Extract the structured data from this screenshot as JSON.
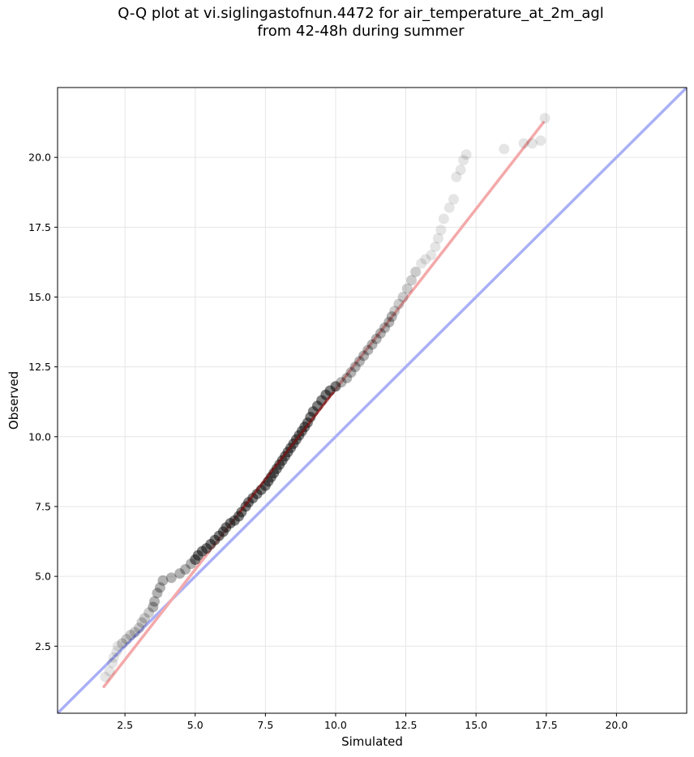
{
  "chart_data": {
    "type": "scatter",
    "title_line1": "Q-Q plot at vi.siglingastofnun.4472 for air_temperature_at_2m_agl",
    "title_line2": "from 42-48h during summer",
    "xlabel": "Simulated",
    "ylabel": "Observed",
    "xlim": [
      0.1,
      22.5
    ],
    "ylim": [
      0.1,
      22.5
    ],
    "xticks": [
      "2.5",
      "5.0",
      "7.5",
      "10.0",
      "12.5",
      "15.0",
      "17.5",
      "20.0"
    ],
    "yticks": [
      "2.5",
      "5.0",
      "7.5",
      "10.0",
      "12.5",
      "15.0",
      "17.5",
      "20.0"
    ],
    "grid": true,
    "colors": {
      "points": "#000000",
      "identity_line": "#aab0f5",
      "fit_line": "#f4a9aa",
      "fit_line_dense": "#8a1010"
    },
    "identity_line": {
      "x": [
        0.1,
        22.5
      ],
      "y": [
        0.1,
        22.5
      ]
    },
    "fit_line": {
      "x": [
        1.75,
        17.4
      ],
      "y": [
        1.05,
        21.25
      ]
    },
    "series": [
      {
        "points": [
          [
            1.8,
            1.4
          ],
          [
            1.95,
            1.6
          ],
          [
            2.05,
            1.9
          ],
          [
            2.1,
            2.1
          ],
          [
            2.2,
            2.3
          ],
          [
            2.25,
            2.5
          ],
          [
            2.4,
            2.6
          ],
          [
            2.55,
            2.75
          ],
          [
            2.7,
            2.9
          ],
          [
            2.85,
            3.0
          ],
          [
            3.0,
            3.15
          ],
          [
            3.1,
            3.35
          ],
          [
            3.2,
            3.5
          ],
          [
            3.35,
            3.7
          ],
          [
            3.5,
            3.9
          ],
          [
            3.55,
            4.1
          ],
          [
            3.65,
            4.4
          ],
          [
            3.75,
            4.6
          ],
          [
            3.85,
            4.85
          ],
          [
            4.15,
            4.95
          ],
          [
            4.45,
            5.1
          ],
          [
            4.65,
            5.25
          ],
          [
            4.85,
            5.45
          ],
          [
            5.0,
            5.6
          ],
          [
            5.1,
            5.75
          ],
          [
            5.25,
            5.9
          ],
          [
            5.4,
            6.0
          ],
          [
            5.55,
            6.15
          ],
          [
            5.7,
            6.3
          ],
          [
            5.85,
            6.45
          ],
          [
            6.0,
            6.6
          ],
          [
            6.1,
            6.75
          ],
          [
            6.25,
            6.9
          ],
          [
            6.4,
            7.0
          ],
          [
            6.55,
            7.15
          ],
          [
            6.65,
            7.3
          ],
          [
            6.8,
            7.5
          ],
          [
            6.9,
            7.65
          ],
          [
            7.05,
            7.8
          ],
          [
            7.2,
            7.95
          ],
          [
            7.35,
            8.1
          ],
          [
            7.5,
            8.25
          ],
          [
            7.6,
            8.4
          ],
          [
            7.7,
            8.55
          ],
          [
            7.8,
            8.7
          ],
          [
            7.9,
            8.85
          ],
          [
            8.0,
            9.0
          ],
          [
            8.1,
            9.15
          ],
          [
            8.2,
            9.3
          ],
          [
            8.3,
            9.45
          ],
          [
            8.4,
            9.6
          ],
          [
            8.5,
            9.75
          ],
          [
            8.6,
            9.9
          ],
          [
            8.7,
            10.05
          ],
          [
            8.8,
            10.2
          ],
          [
            8.9,
            10.35
          ],
          [
            9.0,
            10.5
          ],
          [
            9.1,
            10.7
          ],
          [
            9.2,
            10.9
          ],
          [
            9.35,
            11.1
          ],
          [
            9.5,
            11.3
          ],
          [
            9.65,
            11.5
          ],
          [
            9.8,
            11.65
          ],
          [
            10.0,
            11.8
          ],
          [
            10.2,
            11.95
          ],
          [
            10.4,
            12.1
          ],
          [
            10.55,
            12.3
          ],
          [
            10.7,
            12.5
          ],
          [
            10.85,
            12.7
          ],
          [
            11.0,
            12.9
          ],
          [
            11.15,
            13.1
          ],
          [
            11.3,
            13.3
          ],
          [
            11.45,
            13.5
          ],
          [
            11.6,
            13.7
          ],
          [
            11.75,
            13.9
          ],
          [
            11.9,
            14.1
          ],
          [
            12.0,
            14.3
          ],
          [
            12.1,
            14.5
          ],
          [
            12.25,
            14.75
          ],
          [
            12.4,
            15.0
          ],
          [
            12.55,
            15.3
          ],
          [
            12.7,
            15.6
          ],
          [
            12.85,
            15.9
          ],
          [
            13.05,
            16.2
          ],
          [
            13.2,
            16.35
          ],
          [
            13.4,
            16.5
          ],
          [
            13.55,
            16.8
          ],
          [
            13.65,
            17.1
          ],
          [
            13.75,
            17.4
          ],
          [
            13.85,
            17.8
          ],
          [
            14.05,
            18.2
          ],
          [
            14.2,
            18.5
          ],
          [
            14.3,
            19.3
          ],
          [
            14.45,
            19.55
          ],
          [
            14.55,
            19.9
          ],
          [
            14.65,
            20.1
          ],
          [
            16.0,
            20.3
          ],
          [
            16.7,
            20.5
          ],
          [
            17.0,
            20.5
          ],
          [
            17.3,
            20.6
          ],
          [
            17.45,
            21.4
          ]
        ]
      }
    ]
  }
}
